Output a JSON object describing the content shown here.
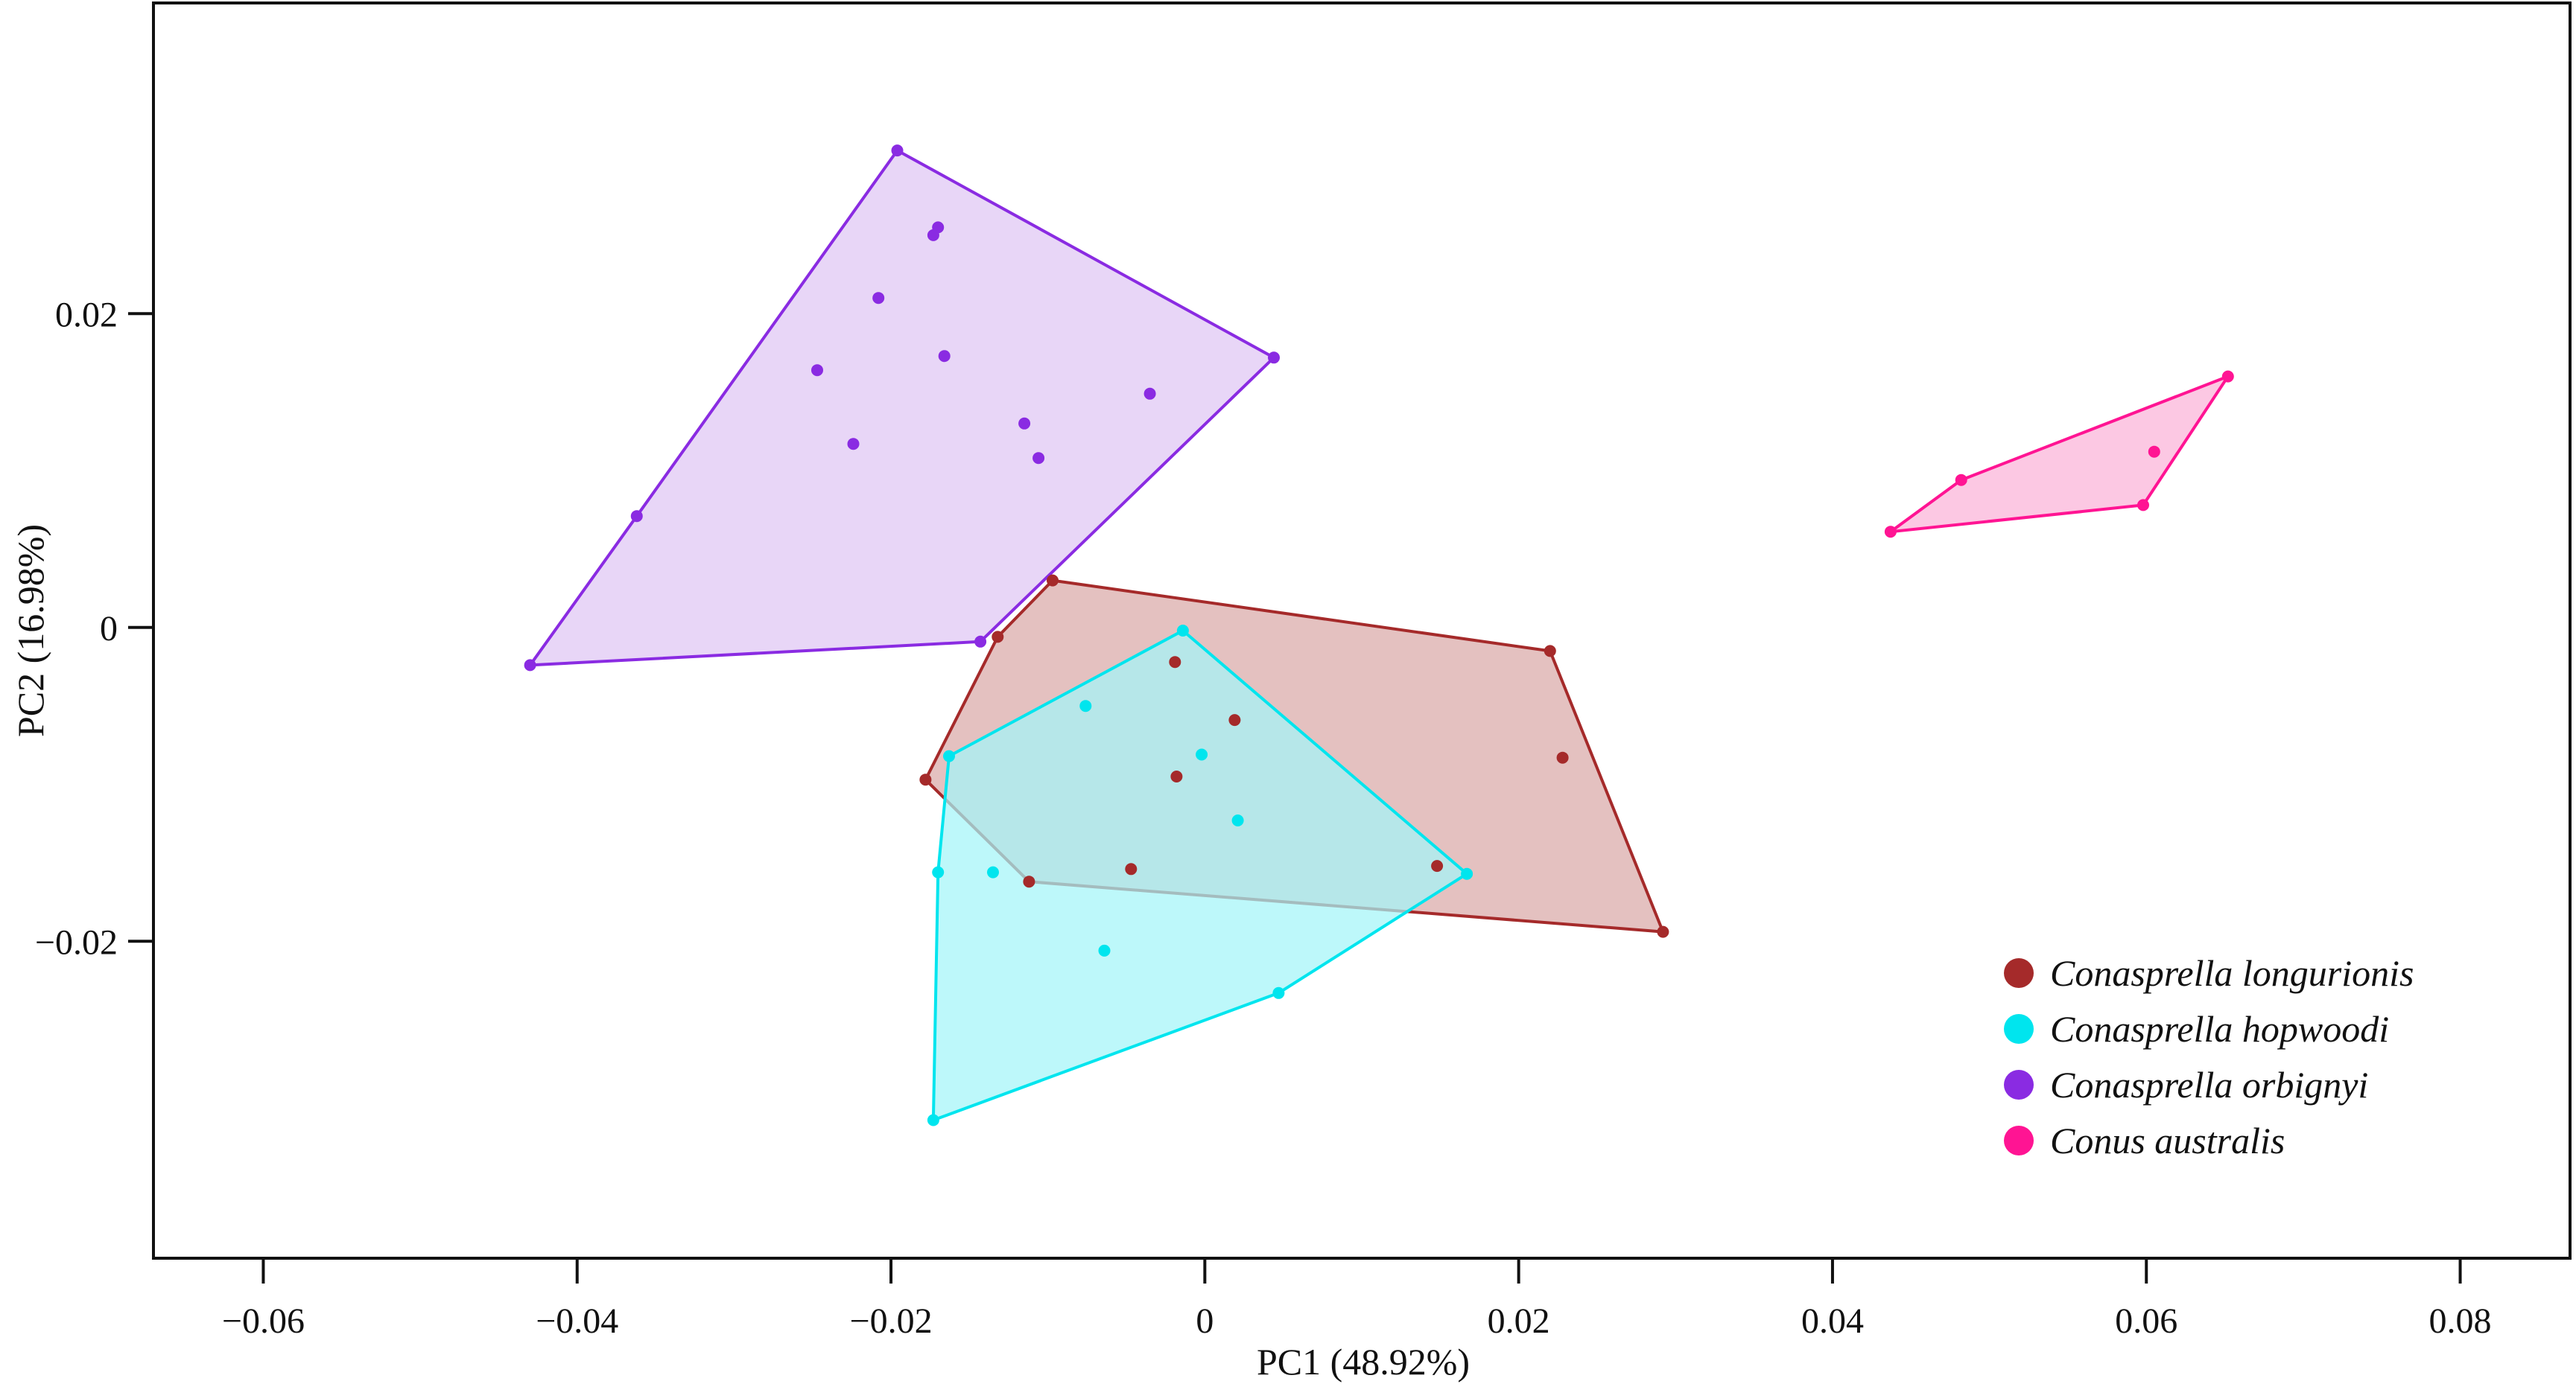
{
  "chart_data": {
    "type": "scatter",
    "title": "",
    "xlabel": "PC1 (48.92%)",
    "ylabel": "PC2 (16.98%)",
    "xlim": [
      -0.067,
      0.087
    ],
    "ylim": [
      -0.0402,
      0.0398
    ],
    "xticks": [
      -0.06,
      -0.04,
      -0.02,
      0,
      0.02,
      0.04,
      0.06,
      0.08
    ],
    "xtick_labels": [
      "−0.06",
      "−0.04",
      "−0.02",
      "0",
      "0.02",
      "0.04",
      "0.06",
      "0.08"
    ],
    "yticks": [
      -0.02,
      0,
      0.02
    ],
    "ytick_labels": [
      "−0.02",
      "0",
      "0.02"
    ],
    "grid": false,
    "legend_position": "bottom-right",
    "series": [
      {
        "name": "Conasprella longurionis",
        "color": "#a52a2a",
        "fill": "#d9a9a7",
        "points": [
          [
            -0.0132,
            -0.0006
          ],
          [
            -0.0097,
            0.003
          ],
          [
            0.022,
            -0.0015
          ],
          [
            0.0292,
            -0.0194
          ],
          [
            -0.0112,
            -0.0162
          ],
          [
            -0.0178,
            -0.0097
          ],
          [
            -0.0019,
            -0.0022
          ],
          [
            0.0019,
            -0.0059
          ],
          [
            -0.0018,
            -0.0095
          ],
          [
            0.0228,
            -0.0083
          ],
          [
            -0.0047,
            -0.0154
          ],
          [
            0.0148,
            -0.0152
          ]
        ],
        "hull": [
          [
            -0.0132,
            -0.0006
          ],
          [
            -0.0097,
            0.003
          ],
          [
            0.022,
            -0.0015
          ],
          [
            0.0292,
            -0.0194
          ],
          [
            -0.0112,
            -0.0162
          ],
          [
            -0.0178,
            -0.0097
          ]
        ]
      },
      {
        "name": "Conasprella hopwoodi",
        "color": "#00e5ee",
        "fill": "#a3f5f8",
        "points": [
          [
            -0.0014,
            -0.0002
          ],
          [
            0.0167,
            -0.0157
          ],
          [
            0.0047,
            -0.0233
          ],
          [
            -0.0173,
            -0.0314
          ],
          [
            -0.017,
            -0.0156
          ],
          [
            -0.0163,
            -0.0082
          ],
          [
            -0.0076,
            -0.005
          ],
          [
            -0.0002,
            -0.0081
          ],
          [
            0.0021,
            -0.0123
          ],
          [
            -0.0135,
            -0.0156
          ],
          [
            -0.0064,
            -0.0206
          ]
        ],
        "hull": [
          [
            -0.0014,
            -0.0002
          ],
          [
            0.0167,
            -0.0157
          ],
          [
            0.0047,
            -0.0233
          ],
          [
            -0.0173,
            -0.0314
          ],
          [
            -0.017,
            -0.0156
          ],
          [
            -0.0163,
            -0.0082
          ]
        ]
      },
      {
        "name": "Conasprella orbignyi",
        "color": "#8a2be2",
        "fill": "#dfc6f4",
        "points": [
          [
            -0.0196,
            0.0304
          ],
          [
            0.0044,
            0.0172
          ],
          [
            -0.0143,
            -0.0009
          ],
          [
            -0.043,
            -0.0024
          ],
          [
            -0.0362,
            0.0071
          ],
          [
            -0.017,
            0.0255
          ],
          [
            -0.0173,
            0.025
          ],
          [
            -0.0208,
            0.021
          ],
          [
            -0.0166,
            0.0173
          ],
          [
            -0.0247,
            0.0164
          ],
          [
            -0.0035,
            0.0149
          ],
          [
            -0.0115,
            0.013
          ],
          [
            -0.0224,
            0.0117
          ],
          [
            -0.0106,
            0.0108
          ]
        ],
        "hull": [
          [
            -0.0196,
            0.0304
          ],
          [
            0.0044,
            0.0172
          ],
          [
            -0.0143,
            -0.0009
          ],
          [
            -0.043,
            -0.0024
          ],
          [
            -0.0362,
            0.0071
          ]
        ]
      },
      {
        "name": "Conus australis",
        "color": "#ff1493",
        "fill": "#fbb3d8",
        "points": [
          [
            0.0652,
            0.016
          ],
          [
            0.0598,
            0.0078
          ],
          [
            0.0437,
            0.0061
          ],
          [
            0.0482,
            0.0094
          ],
          [
            0.0605,
            0.0112
          ]
        ],
        "hull": [
          [
            0.0652,
            0.016
          ],
          [
            0.0598,
            0.0078
          ],
          [
            0.0437,
            0.0061
          ],
          [
            0.0482,
            0.0094
          ]
        ]
      }
    ]
  }
}
